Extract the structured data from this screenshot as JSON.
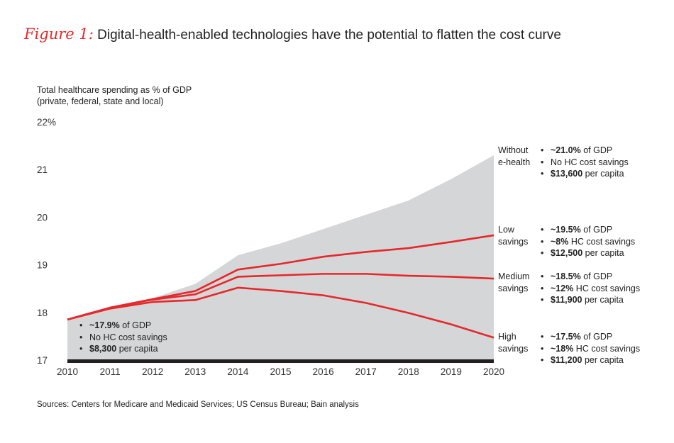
{
  "title": {
    "figure_label": "Figure 1:",
    "text": "Digital-health-enabled technologies have the potential to flatten the cost curve"
  },
  "y_axis_label": [
    "Total healthcare spending as % of GDP",
    "(private, federal, state and local)"
  ],
  "source": "Sources: Centers for Medicare and Medicaid Services; US Census Bureau; Bain analysis",
  "colors": {
    "area": "#d5d6d8",
    "line": "#e5282a",
    "axis": "#231f20",
    "accent": "#e5282a"
  },
  "chart_data": {
    "type": "line",
    "x": [
      2010,
      2011,
      2012,
      2013,
      2014,
      2015,
      2016,
      2017,
      2018,
      2019,
      2020
    ],
    "y_tick_labels": [
      "22%",
      "21",
      "20",
      "19",
      "18",
      "17"
    ],
    "ylim": [
      17,
      22
    ],
    "grid": false,
    "series": [
      {
        "name": "Without e-health",
        "style": "area",
        "values": [
          17.85,
          18.1,
          18.3,
          18.6,
          19.2,
          19.45,
          19.75,
          20.05,
          20.35,
          20.8,
          21.3
        ]
      },
      {
        "name": "Low savings",
        "style": "line",
        "values": [
          17.85,
          18.1,
          18.28,
          18.45,
          18.9,
          19.02,
          19.17,
          19.27,
          19.35,
          19.48,
          19.62
        ]
      },
      {
        "name": "Medium savings",
        "style": "line",
        "values": [
          17.85,
          18.1,
          18.27,
          18.38,
          18.75,
          18.78,
          18.81,
          18.81,
          18.77,
          18.75,
          18.71
        ]
      },
      {
        "name": "High savings",
        "style": "line",
        "values": [
          17.85,
          18.08,
          18.22,
          18.26,
          18.52,
          18.45,
          18.36,
          18.2,
          17.99,
          17.75,
          17.47
        ]
      }
    ],
    "annotations": [
      {
        "id": "start",
        "label": [],
        "bullets": [
          [
            {
              "t": "~17.9%",
              "b": true
            },
            {
              "t": " of GDP",
              "b": false
            }
          ],
          [
            {
              "t": "No HC cost savings",
              "b": false
            }
          ],
          [
            {
              "t": "$8,300",
              "b": true
            },
            {
              "t": " per capita",
              "b": false
            }
          ]
        ]
      },
      {
        "id": "without",
        "label": [
          "Without",
          "e-health"
        ],
        "bullets": [
          [
            {
              "t": "~21.0%",
              "b": true
            },
            {
              "t": " of GDP",
              "b": false
            }
          ],
          [
            {
              "t": "No HC cost savings",
              "b": false
            }
          ],
          [
            {
              "t": "$13,600",
              "b": true
            },
            {
              "t": " per capita",
              "b": false
            }
          ]
        ]
      },
      {
        "id": "low",
        "label": [
          "Low",
          "savings"
        ],
        "bullets": [
          [
            {
              "t": "~19.5%",
              "b": true
            },
            {
              "t": " of GDP",
              "b": false
            }
          ],
          [
            {
              "t": "~8%",
              "b": true
            },
            {
              "t": " HC cost savings",
              "b": false
            }
          ],
          [
            {
              "t": "$12,500",
              "b": true
            },
            {
              "t": " per capita",
              "b": false
            }
          ]
        ]
      },
      {
        "id": "medium",
        "label": [
          "Medium",
          "savings"
        ],
        "bullets": [
          [
            {
              "t": "~18.5%",
              "b": true
            },
            {
              "t": " of GDP",
              "b": false
            }
          ],
          [
            {
              "t": "~12%",
              "b": true
            },
            {
              "t": " HC cost savings",
              "b": false
            }
          ],
          [
            {
              "t": "$11,900",
              "b": true
            },
            {
              "t": " per capita",
              "b": false
            }
          ]
        ]
      },
      {
        "id": "high",
        "label": [
          "High",
          "savings"
        ],
        "bullets": [
          [
            {
              "t": "~17.5%",
              "b": true
            },
            {
              "t": " of GDP",
              "b": false
            }
          ],
          [
            {
              "t": "~18%",
              "b": true
            },
            {
              "t": " HC cost savings",
              "b": false
            }
          ],
          [
            {
              "t": "$11,200",
              "b": true
            },
            {
              "t": " per capita",
              "b": false
            }
          ]
        ]
      }
    ]
  }
}
